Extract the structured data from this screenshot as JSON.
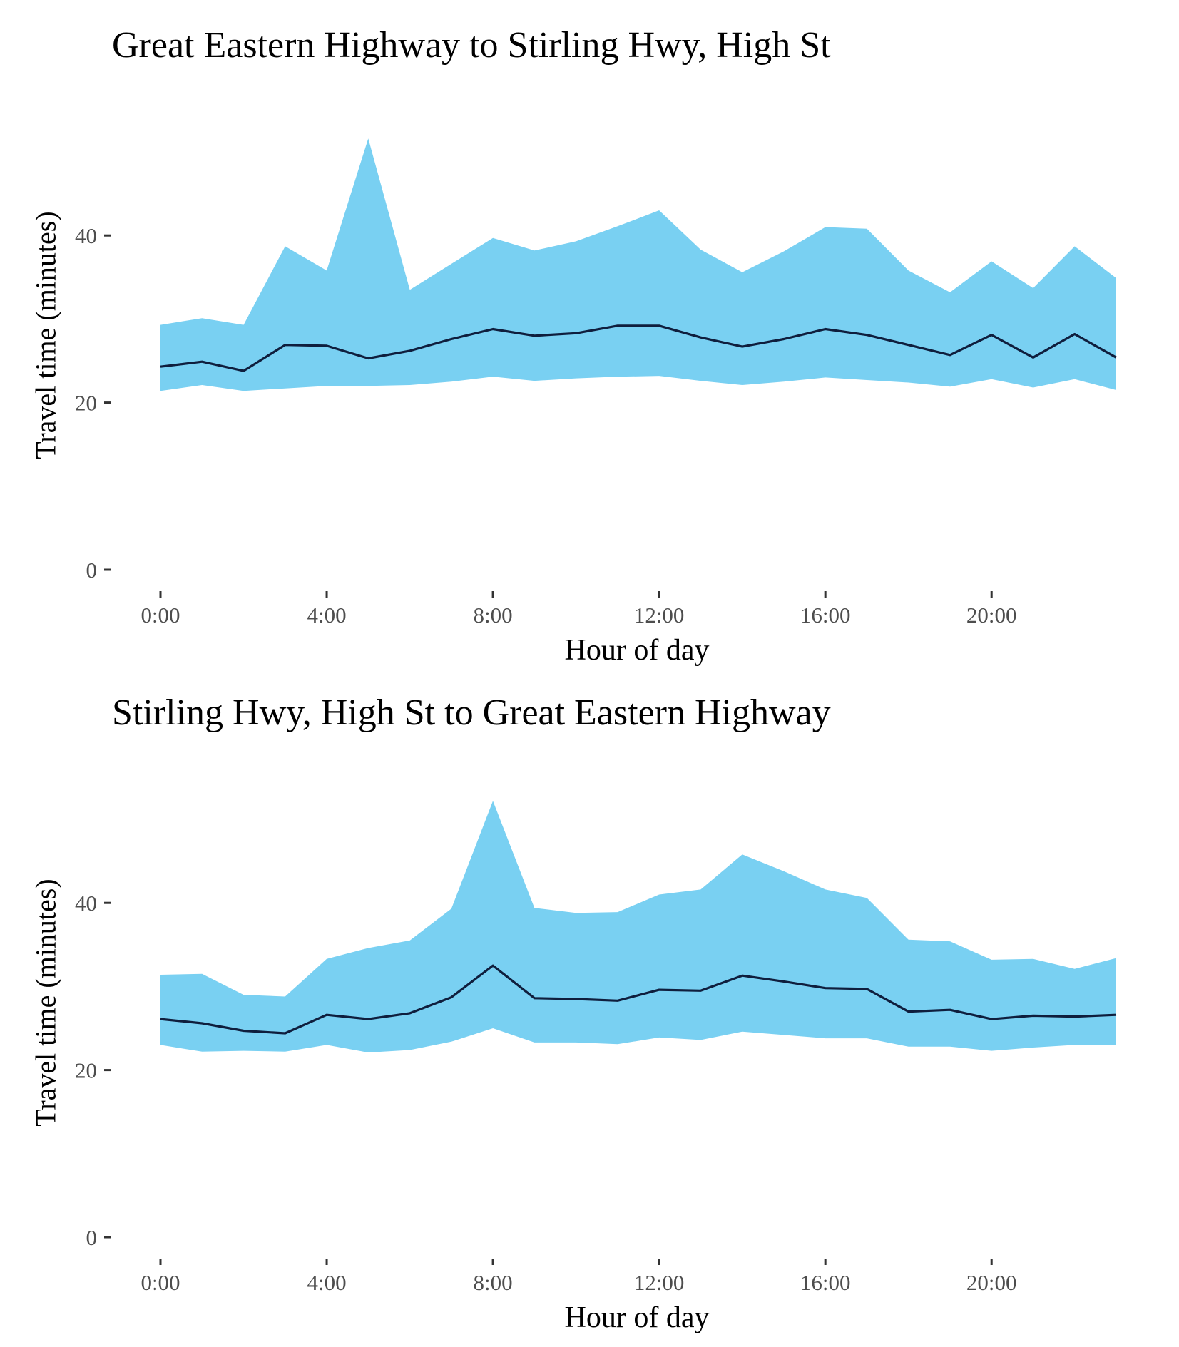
{
  "chart_data": [
    {
      "type": "area",
      "title": "Great Eastern Highway to Stirling Hwy, High St",
      "xlabel": "Hour of day",
      "ylabel": "Travel time (minutes)",
      "x": [
        0,
        1,
        2,
        3,
        4,
        5,
        6,
        7,
        8,
        9,
        10,
        11,
        12,
        13,
        14,
        15,
        16,
        17,
        18,
        19,
        20,
        21,
        22,
        23
      ],
      "xticks": [
        {
          "value": 0,
          "label": "0:00"
        },
        {
          "value": 4,
          "label": "4:00"
        },
        {
          "value": 8,
          "label": "8:00"
        },
        {
          "value": 12,
          "label": "12:00"
        },
        {
          "value": 16,
          "label": "16:00"
        },
        {
          "value": 20,
          "label": "20:00"
        }
      ],
      "yticks": [
        {
          "value": 0,
          "label": "0"
        },
        {
          "value": 20,
          "label": "20"
        },
        {
          "value": 40,
          "label": "40"
        }
      ],
      "xlim": [
        0,
        23
      ],
      "ylim": [
        0,
        52
      ],
      "grid": false,
      "series": [
        {
          "role": "band-upper",
          "values": [
            29.3,
            30.1,
            29.3,
            38.7,
            35.8,
            51.6,
            33.5,
            36.6,
            39.7,
            38.2,
            39.3,
            41.1,
            43.0,
            38.3,
            35.6,
            38.1,
            41.0,
            40.8,
            35.8,
            33.2,
            36.9,
            33.7,
            38.7,
            34.9
          ]
        },
        {
          "role": "line",
          "values": [
            24.3,
            24.9,
            23.8,
            26.9,
            26.8,
            25.3,
            26.2,
            27.6,
            28.8,
            28.0,
            28.3,
            29.2,
            29.2,
            27.8,
            26.7,
            27.6,
            28.8,
            28.1,
            26.9,
            25.7,
            28.1,
            25.4,
            28.2,
            25.4
          ]
        },
        {
          "role": "band-lower",
          "values": [
            21.4,
            22.1,
            21.4,
            21.7,
            22.0,
            22.0,
            22.1,
            22.5,
            23.1,
            22.6,
            22.9,
            23.1,
            23.2,
            22.6,
            22.1,
            22.5,
            23.0,
            22.7,
            22.4,
            21.9,
            22.8,
            21.8,
            22.8,
            21.5
          ]
        }
      ],
      "colors": {
        "band": "#79d0f2",
        "line": "#0f1e3d",
        "axis": "#333333"
      }
    },
    {
      "type": "area",
      "title": "Stirling Hwy, High St to Great Eastern Highway",
      "xlabel": "Hour of day",
      "ylabel": "Travel time (minutes)",
      "x": [
        0,
        1,
        2,
        3,
        4,
        5,
        6,
        7,
        8,
        9,
        10,
        11,
        12,
        13,
        14,
        15,
        16,
        17,
        18,
        19,
        20,
        21,
        22,
        23
      ],
      "xticks": [
        {
          "value": 0,
          "label": "0:00"
        },
        {
          "value": 4,
          "label": "4:00"
        },
        {
          "value": 8,
          "label": "8:00"
        },
        {
          "value": 12,
          "label": "12:00"
        },
        {
          "value": 16,
          "label": "16:00"
        },
        {
          "value": 20,
          "label": "20:00"
        }
      ],
      "yticks": [
        {
          "value": 0,
          "label": "0"
        },
        {
          "value": 20,
          "label": "20"
        },
        {
          "value": 40,
          "label": "40"
        }
      ],
      "xlim": [
        0,
        23
      ],
      "ylim": [
        0,
        52
      ],
      "grid": false,
      "series": [
        {
          "role": "band-upper",
          "values": [
            31.4,
            31.5,
            29.0,
            28.8,
            33.3,
            34.6,
            35.5,
            39.3,
            52.2,
            39.4,
            38.8,
            38.9,
            41.0,
            41.6,
            45.8,
            43.8,
            41.6,
            40.6,
            35.6,
            35.4,
            33.2,
            33.3,
            32.1,
            33.4
          ]
        },
        {
          "role": "line",
          "values": [
            26.1,
            25.6,
            24.7,
            24.4,
            26.6,
            26.1,
            26.8,
            28.7,
            32.5,
            28.6,
            28.5,
            28.3,
            29.6,
            29.5,
            31.3,
            30.6,
            29.8,
            29.7,
            27.0,
            27.2,
            26.1,
            26.5,
            26.4,
            26.6
          ]
        },
        {
          "role": "band-lower",
          "values": [
            23.0,
            22.2,
            22.3,
            22.2,
            23.0,
            22.1,
            22.4,
            23.4,
            25.0,
            23.3,
            23.3,
            23.1,
            23.9,
            23.6,
            24.6,
            24.2,
            23.8,
            23.8,
            22.8,
            22.8,
            22.3,
            22.7,
            23.0,
            23.0
          ]
        }
      ],
      "colors": {
        "band": "#79d0f2",
        "line": "#0f1e3d",
        "axis": "#333333"
      }
    }
  ]
}
